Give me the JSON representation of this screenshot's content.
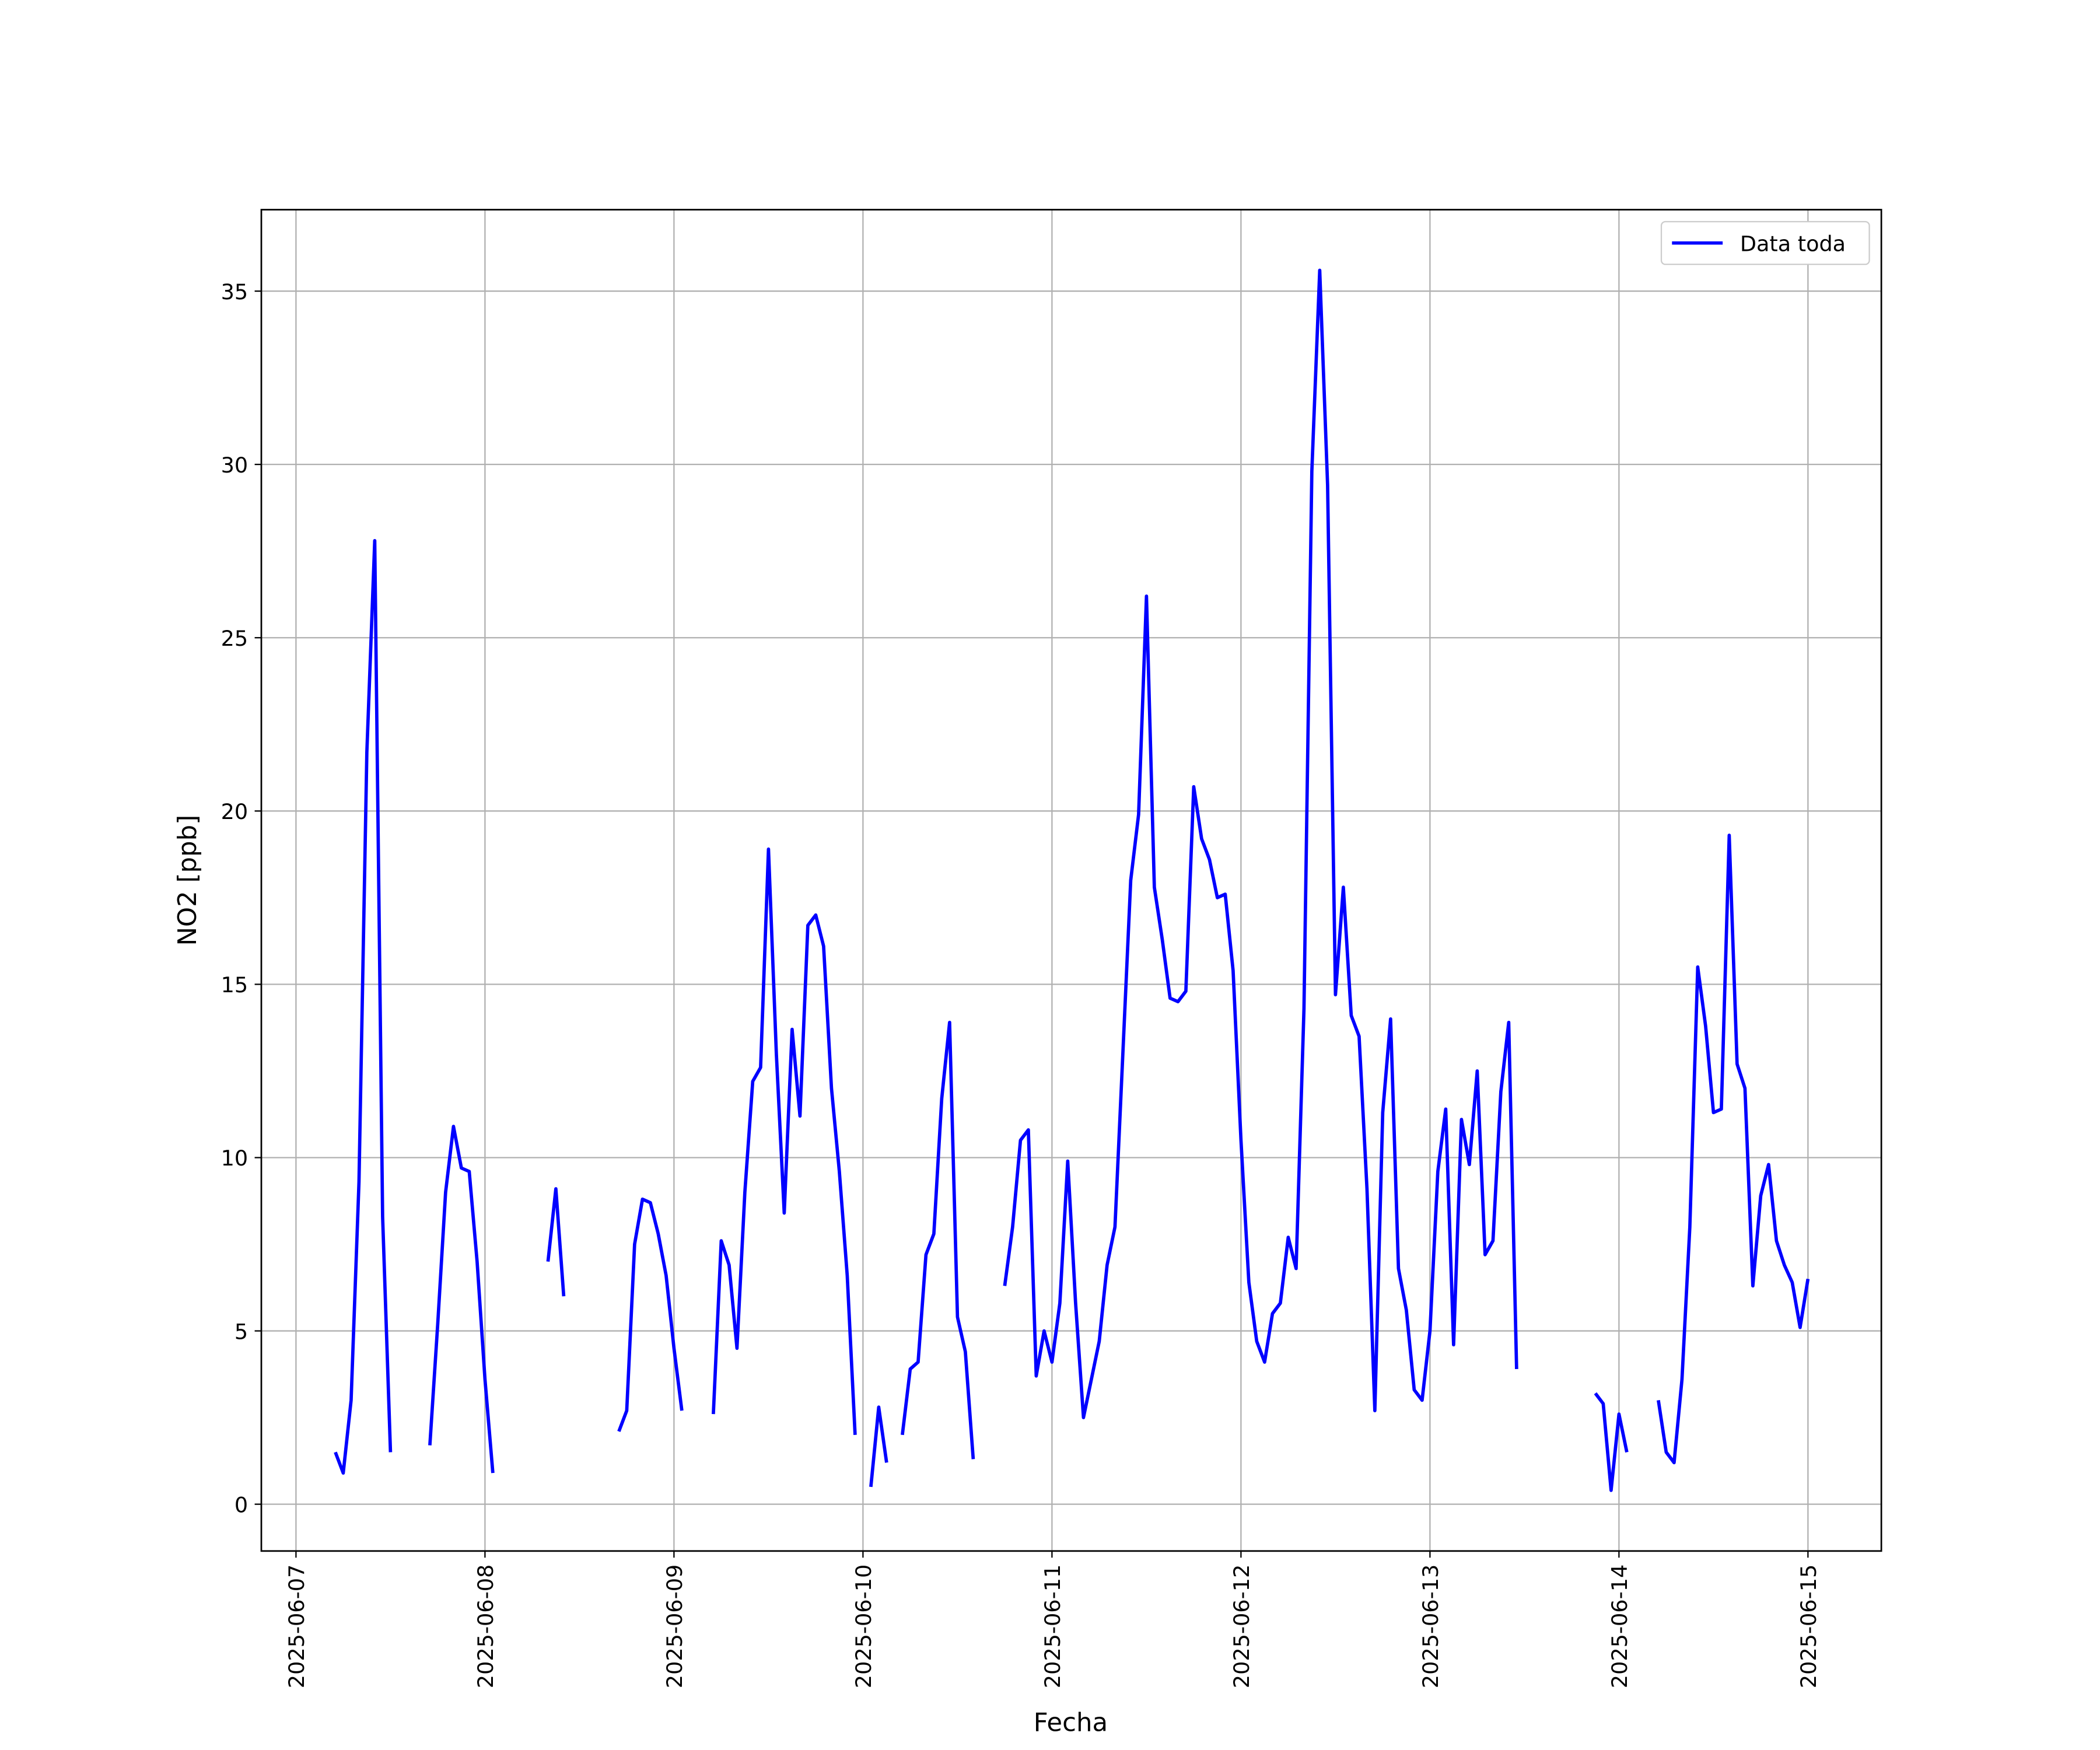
{
  "chart_data": {
    "type": "line",
    "xlabel": "Fecha",
    "ylabel": "NO2 [ppb]",
    "xlim": [
      "2025-06-06 19:36",
      "2025-06-15 09:19"
    ],
    "ylim": [
      -1.35,
      37.35
    ],
    "xticks": [
      "2025-06-07",
      "2025-06-08",
      "2025-06-09",
      "2025-06-10",
      "2025-06-11",
      "2025-06-12",
      "2025-06-13",
      "2025-06-14",
      "2025-06-15"
    ],
    "yticks": [
      0,
      5,
      10,
      15,
      20,
      25,
      30,
      35
    ],
    "grid": true,
    "legend": "upper right",
    "x": [
      "2025-06-07 05:00",
      "2025-06-07 06:00",
      "2025-06-07 07:00",
      "2025-06-07 08:00",
      "2025-06-07 09:00",
      "2025-06-07 10:00",
      "2025-06-07 11:00",
      "2025-06-07 12:00",
      "2025-06-07 13:00",
      "2025-06-07 17:00",
      "2025-06-07 18:00",
      "2025-06-07 19:00",
      "2025-06-07 20:00",
      "2025-06-07 21:00",
      "2025-06-07 22:00",
      "2025-06-07 23:00",
      "2025-06-08 00:00",
      "2025-06-08 01:00",
      "2025-06-08 02:00",
      "2025-06-08 08:00",
      "2025-06-08 09:00",
      "2025-06-08 10:00",
      "2025-06-08 11:00",
      "2025-06-08 17:00",
      "2025-06-08 18:00",
      "2025-06-08 19:00",
      "2025-06-08 20:00",
      "2025-06-08 21:00",
      "2025-06-08 22:00",
      "2025-06-08 23:00",
      "2025-06-09 00:00",
      "2025-06-09 01:00",
      "2025-06-09 02:00",
      "2025-06-09 05:00",
      "2025-06-09 06:00",
      "2025-06-09 07:00",
      "2025-06-09 08:00",
      "2025-06-09 09:00",
      "2025-06-09 10:00",
      "2025-06-09 11:00",
      "2025-06-09 12:00",
      "2025-06-09 13:00",
      "2025-06-09 14:00",
      "2025-06-09 15:00",
      "2025-06-09 16:00",
      "2025-06-09 17:00",
      "2025-06-09 18:00",
      "2025-06-09 19:00",
      "2025-06-09 20:00",
      "2025-06-09 21:00",
      "2025-06-09 22:00",
      "2025-06-09 23:00",
      "2025-06-10 00:00",
      "2025-06-10 01:00",
      "2025-06-10 02:00",
      "2025-06-10 03:00",
      "2025-06-10 04:00",
      "2025-06-10 05:00",
      "2025-06-10 06:00",
      "2025-06-10 07:00",
      "2025-06-10 08:00",
      "2025-06-10 09:00",
      "2025-06-10 10:00",
      "2025-06-10 11:00",
      "2025-06-10 12:00",
      "2025-06-10 13:00",
      "2025-06-10 14:00",
      "2025-06-10 15:00",
      "2025-06-10 18:00",
      "2025-06-10 19:00",
      "2025-06-10 20:00",
      "2025-06-10 21:00",
      "2025-06-10 22:00",
      "2025-06-10 23:00",
      "2025-06-11 00:00",
      "2025-06-11 01:00",
      "2025-06-11 02:00",
      "2025-06-11 03:00",
      "2025-06-11 04:00",
      "2025-06-11 05:00",
      "2025-06-11 06:00",
      "2025-06-11 07:00",
      "2025-06-11 08:00",
      "2025-06-11 09:00",
      "2025-06-11 10:00",
      "2025-06-11 11:00",
      "2025-06-11 12:00",
      "2025-06-11 13:00",
      "2025-06-11 14:00",
      "2025-06-11 15:00",
      "2025-06-11 16:00",
      "2025-06-11 17:00",
      "2025-06-11 18:00",
      "2025-06-11 19:00",
      "2025-06-11 20:00",
      "2025-06-11 21:00",
      "2025-06-11 22:00",
      "2025-06-11 23:00",
      "2025-06-12 00:00",
      "2025-06-12 01:00",
      "2025-06-12 02:00",
      "2025-06-12 03:00",
      "2025-06-12 04:00",
      "2025-06-12 05:00",
      "2025-06-12 06:00",
      "2025-06-12 07:00",
      "2025-06-12 08:00",
      "2025-06-12 09:00",
      "2025-06-12 10:00",
      "2025-06-12 11:00",
      "2025-06-12 12:00",
      "2025-06-12 13:00",
      "2025-06-12 14:00",
      "2025-06-12 15:00",
      "2025-06-12 16:00",
      "2025-06-12 17:00",
      "2025-06-12 18:00",
      "2025-06-12 19:00",
      "2025-06-12 20:00",
      "2025-06-12 21:00",
      "2025-06-12 22:00",
      "2025-06-12 23:00",
      "2025-06-13 00:00",
      "2025-06-13 01:00",
      "2025-06-13 02:00",
      "2025-06-13 03:00",
      "2025-06-13 04:00",
      "2025-06-13 05:00",
      "2025-06-13 06:00",
      "2025-06-13 07:00",
      "2025-06-13 08:00",
      "2025-06-13 09:00",
      "2025-06-13 10:00",
      "2025-06-13 11:00",
      "2025-06-13 12:00",
      "2025-06-13 21:00",
      "2025-06-13 22:00",
      "2025-06-13 23:00",
      "2025-06-14 00:00",
      "2025-06-14 01:00",
      "2025-06-14 02:00",
      "2025-06-14 05:00",
      "2025-06-14 06:00",
      "2025-06-14 07:00",
      "2025-06-14 08:00",
      "2025-06-14 09:00",
      "2025-06-14 10:00",
      "2025-06-14 11:00",
      "2025-06-14 12:00",
      "2025-06-14 13:00",
      "2025-06-14 14:00",
      "2025-06-14 15:00",
      "2025-06-14 16:00",
      "2025-06-14 17:00",
      "2025-06-14 18:00",
      "2025-06-14 19:00",
      "2025-06-14 20:00",
      "2025-06-14 21:00",
      "2025-06-14 22:00",
      "2025-06-14 23:00",
      "2025-06-15 00:00"
    ],
    "series": [
      {
        "name": "Data toda",
        "color": "#0000ff",
        "values": [
          1.5,
          0.9,
          3.0,
          9.3,
          21.7,
          27.8,
          8.3,
          1.5,
          null,
          1.7,
          5.2,
          9.0,
          10.9,
          9.7,
          9.6,
          7.0,
          3.6,
          0.9,
          null,
          7.0,
          9.1,
          6.0,
          null,
          2.1,
          2.7,
          7.5,
          8.8,
          8.7,
          7.8,
          6.6,
          4.5,
          2.7,
          null,
          2.6,
          7.6,
          6.9,
          4.5,
          9.0,
          12.2,
          12.6,
          18.9,
          13.0,
          8.4,
          13.7,
          11.2,
          16.7,
          17.0,
          16.1,
          12.0,
          9.6,
          6.6,
          2.0,
          null,
          0.5,
          2.8,
          1.2,
          null,
          2.0,
          3.9,
          4.1,
          7.2,
          7.8,
          11.7,
          13.9,
          5.4,
          4.4,
          1.3,
          null,
          6.3,
          8.0,
          10.5,
          10.8,
          3.7,
          5.0,
          4.1,
          5.8,
          9.9,
          5.8,
          2.5,
          3.6,
          4.7,
          6.9,
          8.0,
          13.0,
          18.0,
          19.9,
          26.2,
          17.8,
          16.3,
          14.6,
          14.5,
          14.8,
          20.7,
          19.2,
          18.6,
          17.5,
          17.6,
          15.4,
          10.5,
          6.4,
          4.7,
          4.1,
          5.5,
          5.8,
          7.7,
          6.8,
          14.3,
          29.8,
          35.6,
          29.4,
          14.7,
          17.8,
          14.1,
          13.5,
          9.1,
          2.7,
          11.3,
          14.0,
          6.8,
          5.6,
          3.3,
          3.0,
          5.0,
          9.6,
          11.4,
          4.6,
          11.1,
          9.8,
          12.5,
          7.2,
          7.6,
          11.9,
          13.9,
          3.9,
          null,
          3.2,
          2.9,
          0.4,
          2.6,
          1.5,
          null,
          3.0,
          1.5,
          1.2,
          3.6,
          8.0,
          15.5,
          13.8,
          11.3,
          11.4,
          19.3,
          12.7,
          12.0,
          6.3,
          8.9,
          9.8,
          7.6,
          6.9,
          6.4,
          5.1,
          6.5
        ]
      }
    ]
  }
}
